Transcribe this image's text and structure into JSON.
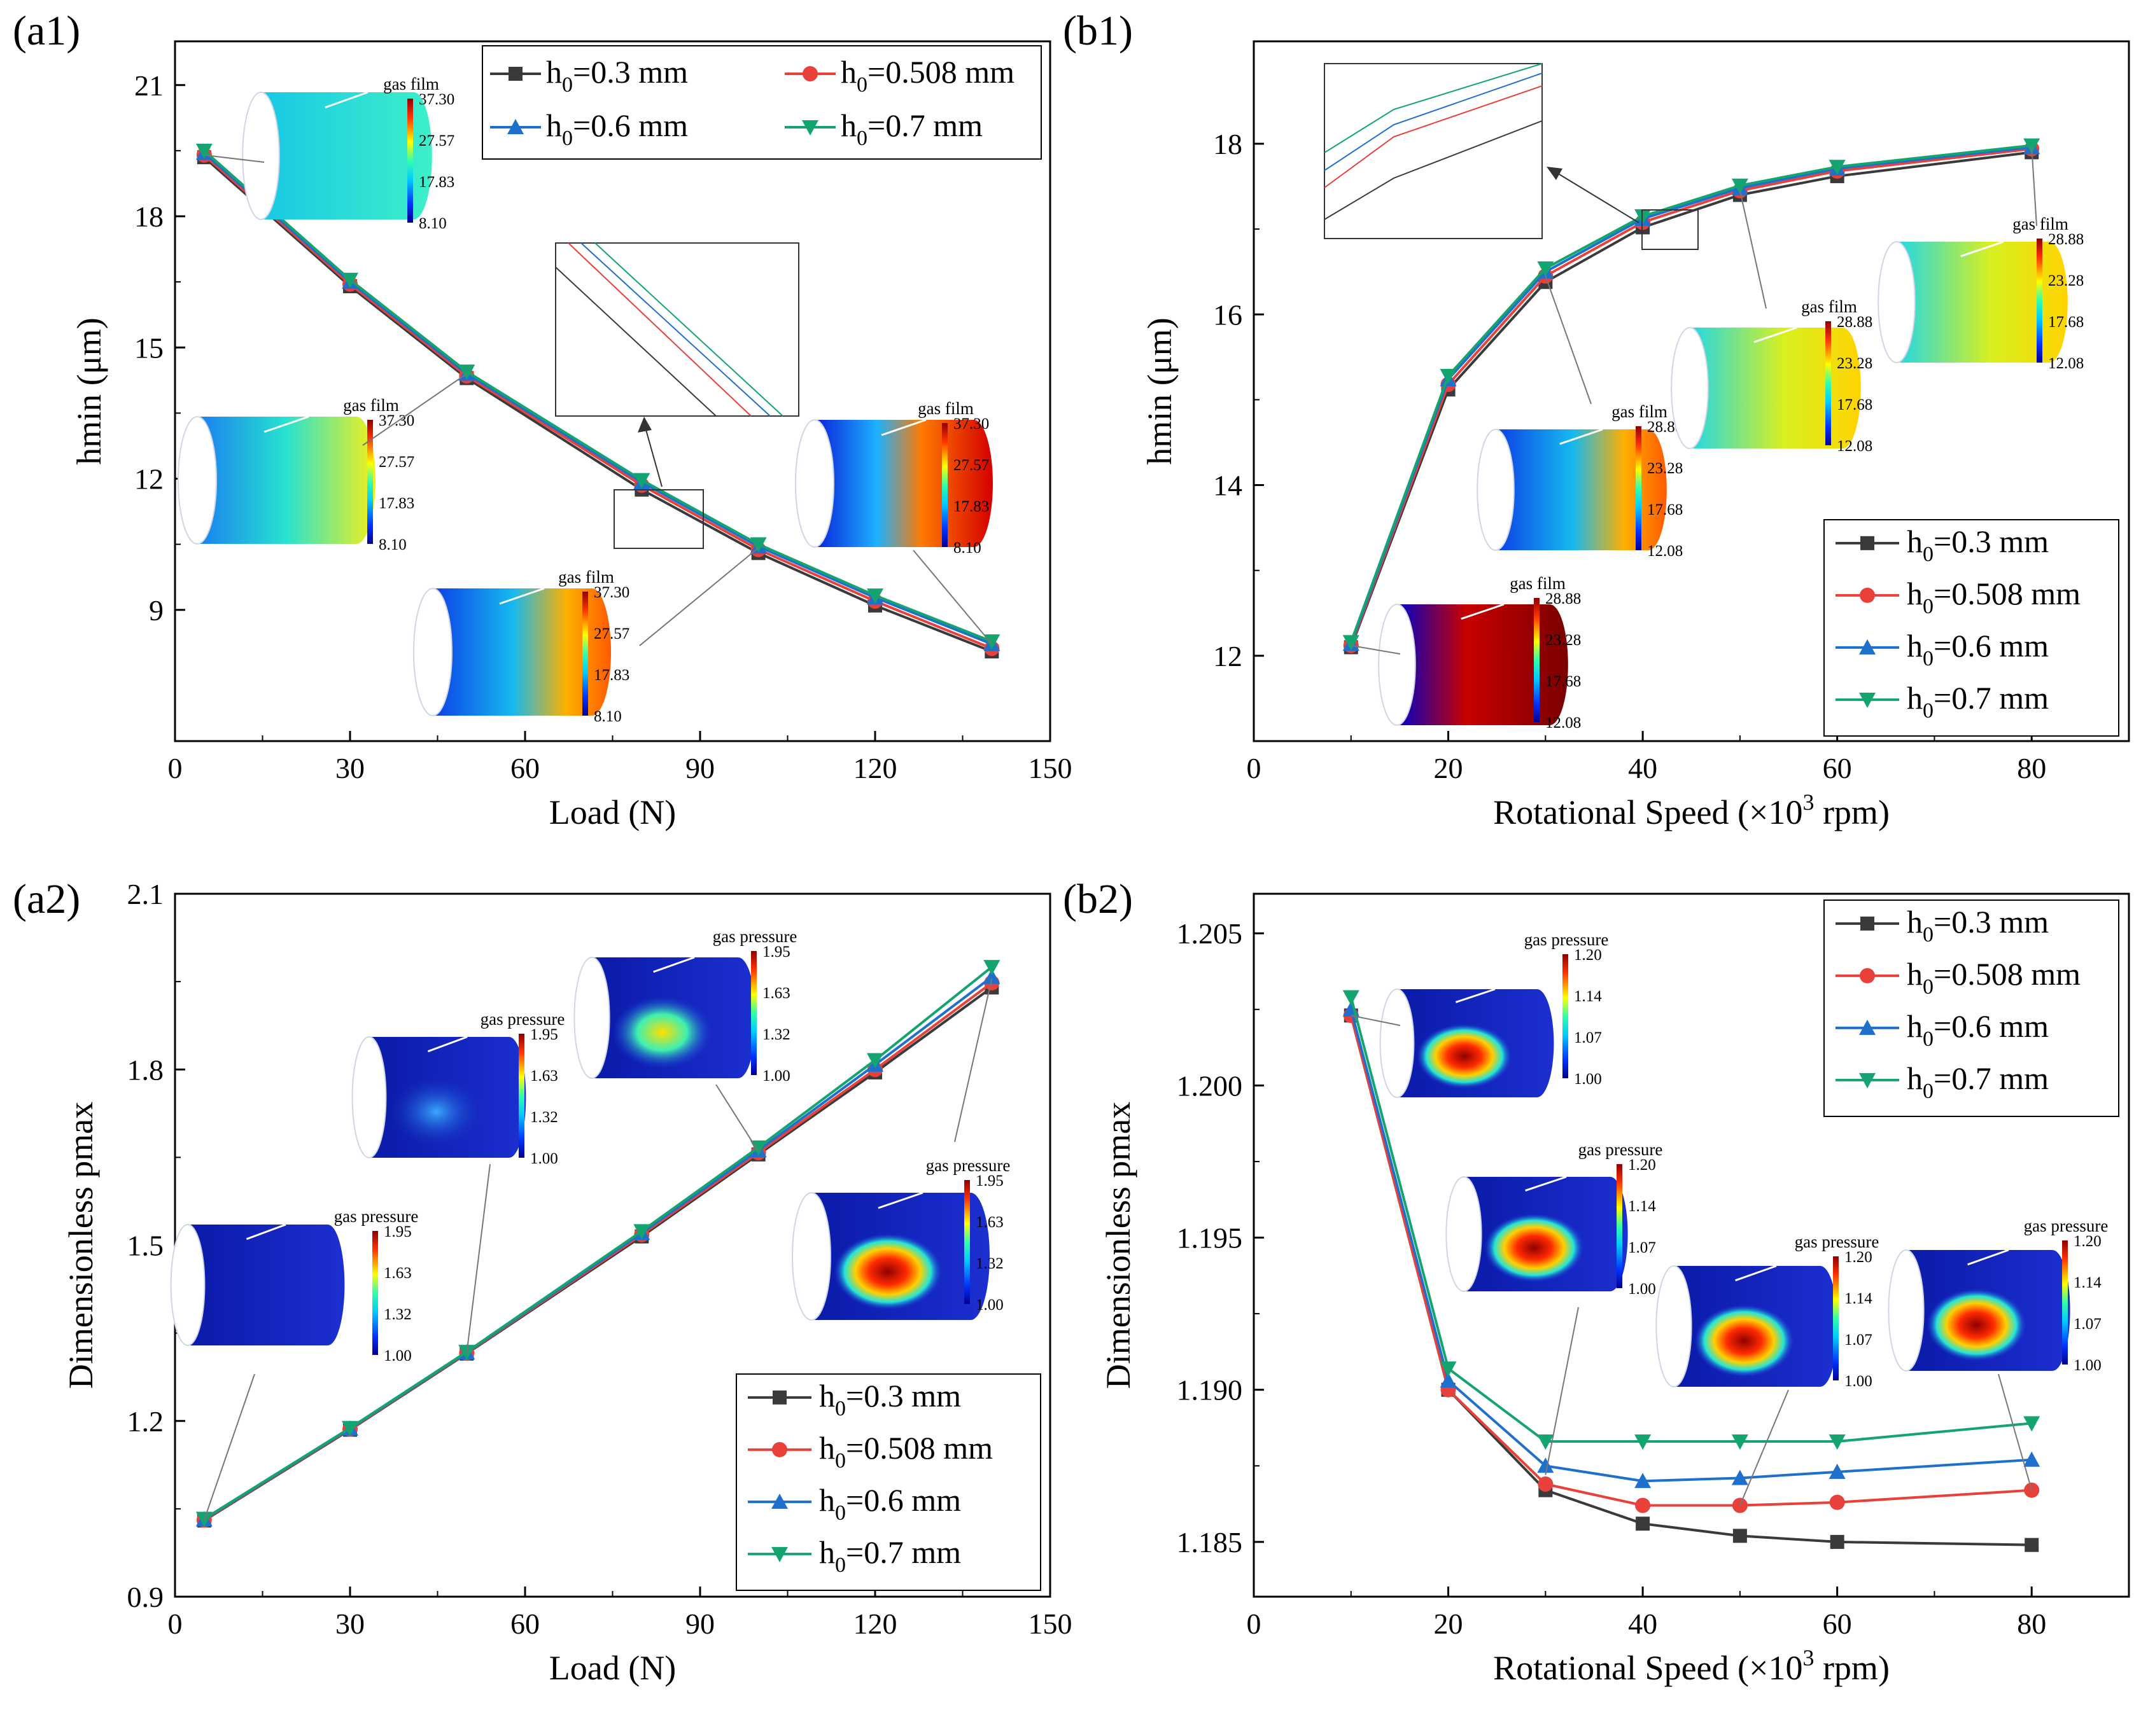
{
  "series_colors": [
    "#3a3a3a",
    "#e8413b",
    "#1f6fcc",
    "#13a470"
  ],
  "panel_labels": [
    "(a1)",
    "(b1)",
    "(a2)",
    "(b2)"
  ],
  "series_names": [
    {
      "h": "h",
      "sub": "0",
      "rest": "=0.3 mm"
    },
    {
      "h": "h",
      "sub": "0",
      "rest": "=0.508 mm"
    },
    {
      "h": "h",
      "sub": "0",
      "rest": "=0.6 mm"
    },
    {
      "h": "h",
      "sub": "0",
      "rest": "=0.7 mm"
    }
  ],
  "xlabel_load": "Load (N)",
  "xlabel_speed_pre": "Rotational Speed (×10",
  "xlabel_speed_sup": "3",
  "xlabel_speed_post": " rpm)",
  "colorbars": {
    "film_a": {
      "title": "gas film",
      "ticks": [
        "37.30",
        "27.57",
        "17.83",
        "8.10"
      ]
    },
    "film_b": {
      "title": "gas film",
      "ticks": [
        "28.88",
        "23.28",
        "17.68",
        "12.08"
      ]
    },
    "press_a": {
      "title": "gas pressure",
      "ticks": [
        "1.95",
        "1.63",
        "1.32",
        "1.00"
      ]
    },
    "press_b": {
      "title": "gas pressure",
      "ticks": [
        "1.20",
        "1.14",
        "1.07",
        "1.00"
      ]
    }
  },
  "chart_data": [
    {
      "id": "a1",
      "type": "line",
      "panel": "(a1)",
      "xlabel": "Load (N)",
      "ylabel": "hmin (μm)",
      "xlim": [
        0,
        150
      ],
      "ylim": [
        6,
        22
      ],
      "xticks": [
        0,
        30,
        60,
        90,
        120,
        150
      ],
      "xtick_labels": [
        "0",
        "30",
        "60",
        "90",
        "120",
        "150"
      ],
      "yticks": [
        9,
        12,
        15,
        18,
        21
      ],
      "ytick_labels": [
        "9",
        "12",
        "15",
        "18",
        "21"
      ],
      "x": [
        5,
        30,
        50,
        80,
        100,
        120,
        140
      ],
      "legend": "top-right",
      "series": [
        {
          "name": "h0=0.3 mm",
          "values": [
            19.35,
            16.4,
            14.3,
            11.75,
            10.3,
            9.1,
            8.05
          ]
        },
        {
          "name": "h0=0.508 mm",
          "values": [
            19.4,
            16.45,
            14.35,
            11.85,
            10.38,
            9.2,
            8.12
          ]
        },
        {
          "name": "h0=0.6 mm",
          "values": [
            19.45,
            16.5,
            14.4,
            11.92,
            10.45,
            9.28,
            8.22
          ]
        },
        {
          "name": "h0=0.7 mm",
          "values": [
            19.5,
            16.55,
            14.45,
            11.97,
            10.5,
            9.33,
            8.28
          ]
        }
      ]
    },
    {
      "id": "b1",
      "type": "line",
      "panel": "(b1)",
      "xlabel": "Rotational Speed (×10^3 rpm)",
      "ylabel": "hmin (μm)",
      "xlim": [
        0,
        90
      ],
      "ylim": [
        11,
        19.2
      ],
      "xticks": [
        0,
        20,
        40,
        60,
        80
      ],
      "xtick_labels": [
        "0",
        "20",
        "40",
        "60",
        "80"
      ],
      "yticks": [
        12,
        14,
        16,
        18
      ],
      "ytick_labels": [
        "12",
        "14",
        "16",
        "18"
      ],
      "x": [
        10,
        20,
        30,
        40,
        50,
        60,
        80
      ],
      "legend": "bottom-right",
      "series": [
        {
          "name": "h0=0.3 mm",
          "values": [
            12.1,
            15.12,
            16.38,
            17.02,
            17.4,
            17.62,
            17.9
          ]
        },
        {
          "name": "h0=0.508 mm",
          "values": [
            12.12,
            15.18,
            16.45,
            17.08,
            17.45,
            17.68,
            17.94
          ]
        },
        {
          "name": "h0=0.6 mm",
          "values": [
            12.14,
            15.24,
            16.5,
            17.12,
            17.48,
            17.71,
            17.96
          ]
        },
        {
          "name": "h0=0.7 mm",
          "values": [
            12.16,
            15.28,
            16.54,
            17.15,
            17.51,
            17.73,
            17.98
          ]
        }
      ]
    },
    {
      "id": "a2",
      "type": "line",
      "panel": "(a2)",
      "xlabel": "Load (N)",
      "ylabel": "Dimensionless pmax",
      "xlim": [
        0,
        150
      ],
      "ylim": [
        0.9,
        2.1
      ],
      "xticks": [
        0,
        30,
        60,
        90,
        120,
        150
      ],
      "xtick_labels": [
        "0",
        "30",
        "60",
        "90",
        "120",
        "150"
      ],
      "yticks": [
        0.9,
        1.2,
        1.5,
        1.8,
        2.1
      ],
      "ytick_labels": [
        "0.9",
        "1.2",
        "1.5",
        "1.8",
        "2.1"
      ],
      "x": [
        5,
        30,
        50,
        80,
        100,
        120,
        140
      ],
      "legend": "bottom-right",
      "series": [
        {
          "name": "h0=0.3 mm",
          "values": [
            1.03,
            1.185,
            1.315,
            1.515,
            1.655,
            1.795,
            1.94
          ]
        },
        {
          "name": "h0=0.508 mm",
          "values": [
            1.031,
            1.186,
            1.316,
            1.518,
            1.658,
            1.8,
            1.948
          ]
        },
        {
          "name": "h0=0.6 mm",
          "values": [
            1.032,
            1.187,
            1.317,
            1.521,
            1.662,
            1.808,
            1.958
          ]
        },
        {
          "name": "h0=0.7 mm",
          "values": [
            1.033,
            1.188,
            1.318,
            1.524,
            1.667,
            1.816,
            1.975
          ]
        }
      ]
    },
    {
      "id": "b2",
      "type": "line",
      "panel": "(b2)",
      "xlabel": "Rotational Speed (×10^3 rpm)",
      "ylabel": "Dimensionless pmax",
      "xlim": [
        0,
        90
      ],
      "ylim": [
        1.1832,
        1.2063
      ],
      "xticks": [
        0,
        20,
        40,
        60,
        80
      ],
      "xtick_labels": [
        "0",
        "20",
        "40",
        "60",
        "80"
      ],
      "yticks": [
        1.185,
        1.19,
        1.195,
        1.2,
        1.205
      ],
      "ytick_labels": [
        "1.185",
        "1.190",
        "1.195",
        "1.200",
        "1.205"
      ],
      "x": [
        10,
        20,
        30,
        40,
        50,
        60,
        80
      ],
      "legend": "top-right",
      "series": [
        {
          "name": "h0=0.3 mm",
          "values": [
            1.2023,
            1.19,
            1.1867,
            1.1856,
            1.1852,
            1.185,
            1.1849
          ]
        },
        {
          "name": "h0=0.508 mm",
          "values": [
            1.2023,
            1.19,
            1.1869,
            1.1862,
            1.1862,
            1.1863,
            1.1867
          ]
        },
        {
          "name": "h0=0.6 mm",
          "values": [
            1.2025,
            1.1903,
            1.1875,
            1.187,
            1.1871,
            1.1873,
            1.1877
          ]
        },
        {
          "name": "h0=0.7 mm",
          "values": [
            1.2029,
            1.1907,
            1.1883,
            1.1883,
            1.1883,
            1.1883,
            1.1889
          ]
        }
      ]
    }
  ]
}
